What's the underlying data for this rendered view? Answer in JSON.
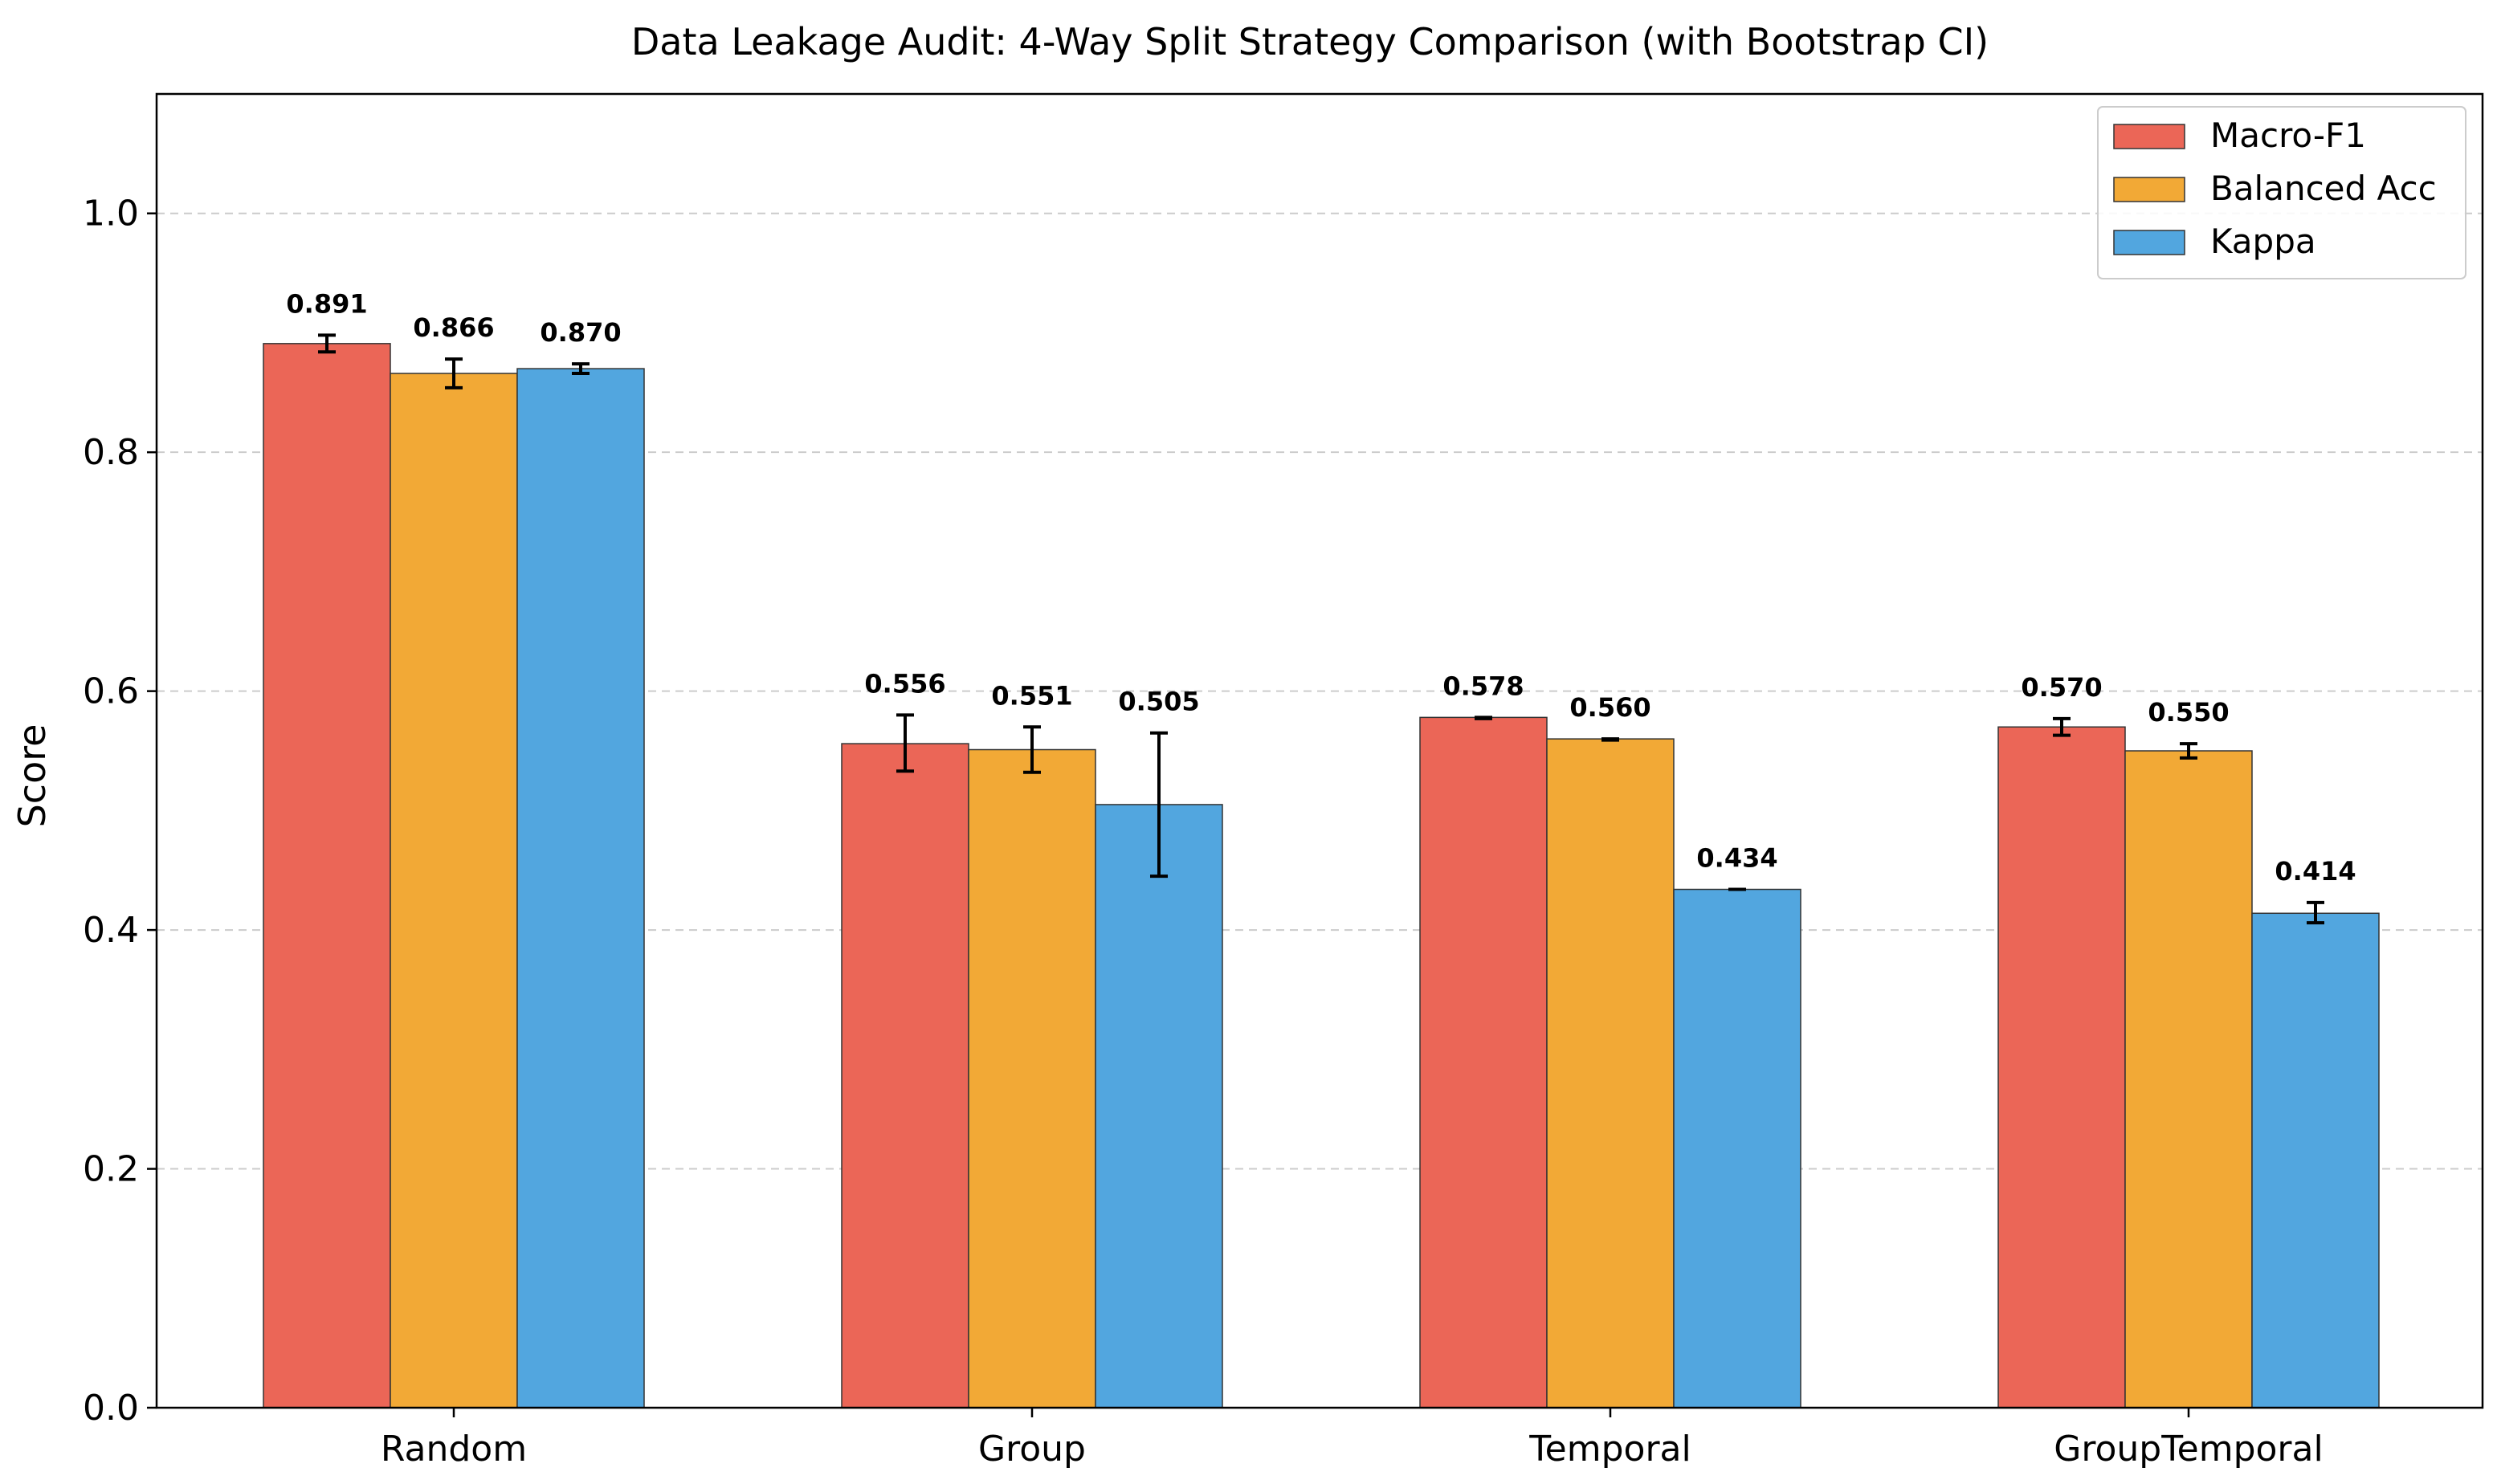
{
  "chart_data": {
    "type": "bar",
    "title": "Data Leakage Audit: 4-Way Split Strategy Comparison (with Bootstrap CI)",
    "xlabel": "",
    "ylabel": "Score",
    "ylim": [
      0,
      1.1
    ],
    "yticks": [
      "0.0",
      "0.2",
      "0.4",
      "0.6",
      "0.8",
      "1.0"
    ],
    "ytick_values": [
      0,
      0.2,
      0.4,
      0.6,
      0.8,
      1.0
    ],
    "grid": "y-dashed",
    "legend_position": "top-right",
    "categories": [
      "Random",
      "Group",
      "Temporal",
      "GroupTemporal"
    ],
    "series": [
      {
        "name": "Macro-F1",
        "color": "#EB6657",
        "values": [
          0.891,
          0.556,
          0.578,
          0.57
        ],
        "labels": [
          "0.891",
          "0.556",
          "0.578",
          "0.570"
        ],
        "ci_low": [
          0.884,
          0.533,
          0.577,
          0.563
        ],
        "ci_high": [
          0.898,
          0.58,
          0.578,
          0.577
        ]
      },
      {
        "name": "Balanced Acc",
        "color": "#F2A936",
        "values": [
          0.866,
          0.551,
          0.56,
          0.55
        ],
        "labels": [
          "0.866",
          "0.551",
          "0.560",
          "0.550"
        ],
        "ci_low": [
          0.854,
          0.532,
          0.559,
          0.544
        ],
        "ci_high": [
          0.878,
          0.57,
          0.56,
          0.556
        ]
      },
      {
        "name": "Kappa",
        "color": "#52A6DF",
        "values": [
          0.87,
          0.505,
          0.434,
          0.414
        ],
        "labels": [
          "0.870",
          "0.505",
          "0.434",
          "0.414"
        ],
        "ci_low": [
          0.866,
          0.445,
          0.434,
          0.406
        ],
        "ci_high": [
          0.874,
          0.565,
          0.434,
          0.423
        ]
      }
    ]
  }
}
